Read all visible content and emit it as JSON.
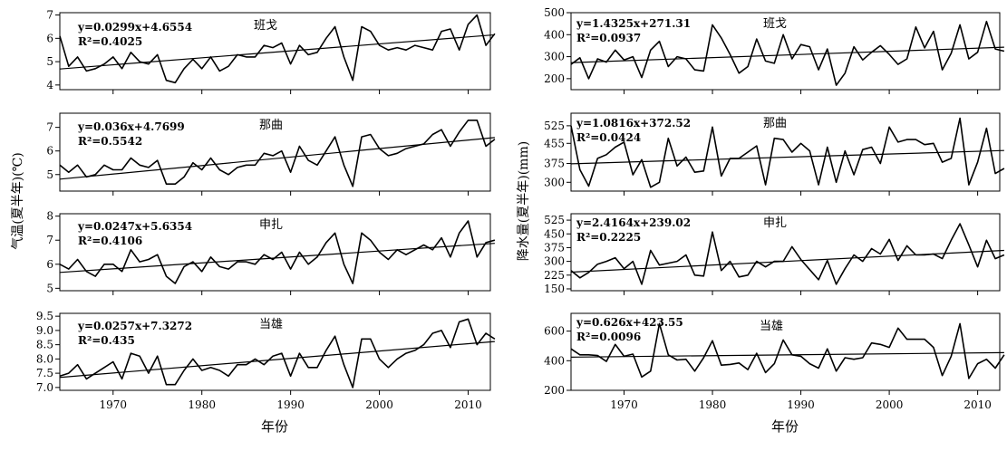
{
  "ylabel_left": "气温(夏半年)(℃)",
  "ylabel_right": "降水量(夏半年)(mm)",
  "xlabel": "年份",
  "x_ticks": [
    1970,
    1980,
    1990,
    2000,
    2010
  ],
  "chart_data": [
    {
      "type": "line",
      "station": "班戈",
      "equation": "y=0.0299x+4.6554",
      "r2": "R²=0.4025",
      "x_start": 1964,
      "ylim": [
        3.8,
        7.1
      ],
      "yticks": [
        4,
        5,
        6,
        7
      ],
      "trend": {
        "slope": 0.0299,
        "intercept": 4.6554
      },
      "values": [
        6.1,
        4.8,
        5.2,
        4.6,
        4.7,
        4.9,
        5.2,
        4.7,
        5.4,
        5.0,
        4.9,
        5.3,
        4.2,
        4.1,
        4.7,
        5.1,
        4.7,
        5.2,
        4.6,
        4.8,
        5.3,
        5.2,
        5.2,
        5.7,
        5.6,
        5.8,
        4.9,
        5.7,
        5.3,
        5.4,
        6.0,
        6.5,
        5.2,
        4.2,
        6.5,
        6.3,
        5.7,
        5.5,
        5.6,
        5.5,
        5.7,
        5.6,
        5.5,
        6.3,
        6.4,
        5.5,
        6.6,
        7.0,
        5.7,
        6.2
      ]
    },
    {
      "type": "line",
      "station": "那曲",
      "equation": "y=0.036x+4.7699",
      "r2": "R²=0.5542",
      "x_start": 1964,
      "ylim": [
        4.3,
        7.6
      ],
      "yticks": [
        5,
        6,
        7
      ],
      "trend": {
        "slope": 0.036,
        "intercept": 4.7699
      },
      "values": [
        5.4,
        5.1,
        5.4,
        4.9,
        5.0,
        5.4,
        5.2,
        5.2,
        5.7,
        5.4,
        5.3,
        5.6,
        4.6,
        4.6,
        4.9,
        5.5,
        5.2,
        5.7,
        5.2,
        5.0,
        5.3,
        5.4,
        5.4,
        5.9,
        5.8,
        6.0,
        5.1,
        6.2,
        5.6,
        5.4,
        6.0,
        6.6,
        5.4,
        4.5,
        6.6,
        6.7,
        6.1,
        5.8,
        5.9,
        6.1,
        6.2,
        6.3,
        6.7,
        6.9,
        6.2,
        6.8,
        7.3,
        7.3,
        6.2,
        6.5
      ]
    },
    {
      "type": "line",
      "station": "申扎",
      "equation": "y=0.0247x+5.6354",
      "r2": "R²=0.4106",
      "x_start": 1964,
      "ylim": [
        4.9,
        8.1
      ],
      "yticks": [
        5,
        6,
        7,
        8
      ],
      "trend": {
        "slope": 0.0247,
        "intercept": 5.6354
      },
      "values": [
        6.0,
        5.8,
        6.2,
        5.7,
        5.5,
        6.0,
        6.0,
        5.7,
        6.6,
        6.1,
        6.2,
        6.4,
        5.5,
        5.2,
        5.9,
        6.1,
        5.7,
        6.3,
        5.9,
        5.8,
        6.1,
        6.1,
        6.0,
        6.4,
        6.2,
        6.5,
        5.8,
        6.5,
        6.0,
        6.3,
        6.9,
        7.3,
        6.0,
        5.2,
        7.3,
        7.0,
        6.5,
        6.2,
        6.6,
        6.4,
        6.6,
        6.8,
        6.6,
        7.1,
        6.3,
        7.3,
        7.8,
        6.3,
        6.9,
        7.0
      ]
    },
    {
      "type": "line",
      "station": "当雄",
      "equation": "y=0.0257x+7.3272",
      "r2": "R²=0.435",
      "x_start": 1964,
      "ylim": [
        6.9,
        9.6
      ],
      "yticks": [
        7.0,
        7.5,
        8.0,
        8.5,
        9.0,
        9.5
      ],
      "trend": {
        "slope": 0.0257,
        "intercept": 7.3272
      },
      "values": [
        7.4,
        7.5,
        7.8,
        7.3,
        7.5,
        7.7,
        7.9,
        7.3,
        8.2,
        8.1,
        7.5,
        8.1,
        7.1,
        7.1,
        7.6,
        8.0,
        7.6,
        7.7,
        7.6,
        7.4,
        7.8,
        7.8,
        8.0,
        7.8,
        8.1,
        8.2,
        7.4,
        8.2,
        7.7,
        7.7,
        8.3,
        8.8,
        7.8,
        7.0,
        8.7,
        8.7,
        8.0,
        7.7,
        8.0,
        8.2,
        8.3,
        8.5,
        8.9,
        9.0,
        8.4,
        9.3,
        9.4,
        8.5,
        8.9,
        8.7
      ]
    },
    {
      "type": "line",
      "station": "班戈",
      "equation": "y=1.4325x+271.31",
      "r2": "R²=0.0937",
      "x_start": 1964,
      "ylim": [
        150,
        500
      ],
      "yticks": [
        200,
        300,
        400,
        500
      ],
      "trend": {
        "slope": 1.4325,
        "intercept": 271.31
      },
      "values": [
        265,
        295,
        200,
        290,
        275,
        330,
        285,
        300,
        205,
        330,
        370,
        255,
        300,
        290,
        240,
        235,
        445,
        385,
        310,
        225,
        255,
        380,
        280,
        270,
        400,
        290,
        355,
        345,
        240,
        335,
        170,
        225,
        345,
        285,
        320,
        350,
        310,
        265,
        290,
        435,
        340,
        415,
        240,
        315,
        445,
        290,
        320,
        460,
        335,
        325
      ]
    },
    {
      "type": "line",
      "station": "那曲",
      "equation": "y=1.0816x+372.52",
      "r2": "R²=0.0424",
      "x_start": 1964,
      "ylim": [
        265,
        575
      ],
      "yticks": [
        300,
        375,
        455,
        525
      ],
      "trend": {
        "slope": 1.0816,
        "intercept": 372.52
      },
      "values": [
        525,
        350,
        285,
        395,
        410,
        440,
        460,
        330,
        390,
        280,
        300,
        475,
        365,
        400,
        340,
        345,
        520,
        325,
        395,
        395,
        420,
        445,
        290,
        475,
        470,
        420,
        455,
        425,
        290,
        440,
        300,
        425,
        330,
        430,
        440,
        375,
        520,
        460,
        470,
        470,
        450,
        455,
        380,
        395,
        555,
        290,
        380,
        515,
        335,
        355
      ]
    },
    {
      "type": "line",
      "station": "申扎",
      "equation": "y=2.4164x+239.02",
      "r2": "R²=0.2225",
      "x_start": 1964,
      "ylim": [
        140,
        560
      ],
      "yticks": [
        150,
        225,
        300,
        375,
        450,
        525
      ],
      "trend": {
        "slope": 2.4164,
        "intercept": 239.02
      },
      "values": [
        250,
        210,
        240,
        285,
        300,
        320,
        260,
        300,
        175,
        360,
        280,
        290,
        300,
        335,
        225,
        220,
        460,
        250,
        300,
        215,
        225,
        300,
        270,
        300,
        300,
        380,
        310,
        255,
        200,
        305,
        175,
        260,
        335,
        300,
        370,
        340,
        420,
        305,
        385,
        335,
        335,
        340,
        315,
        415,
        505,
        390,
        270,
        415,
        315,
        335
      ]
    },
    {
      "type": "line",
      "station": "当雄",
      "equation": "y=0.626x+423.55",
      "r2": "R²=0.0096",
      "x_start": 1964,
      "ylim": [
        200,
        720
      ],
      "yticks": [
        200,
        400,
        600
      ],
      "trend": {
        "slope": 0.626,
        "intercept": 423.55
      },
      "values": [
        480,
        440,
        440,
        435,
        395,
        510,
        430,
        445,
        290,
        330,
        650,
        440,
        405,
        410,
        330,
        420,
        535,
        370,
        375,
        385,
        340,
        450,
        320,
        380,
        540,
        440,
        430,
        380,
        350,
        480,
        330,
        420,
        410,
        420,
        520,
        510,
        490,
        620,
        545,
        545,
        545,
        490,
        300,
        430,
        650,
        280,
        380,
        410,
        350,
        440
      ]
    }
  ]
}
